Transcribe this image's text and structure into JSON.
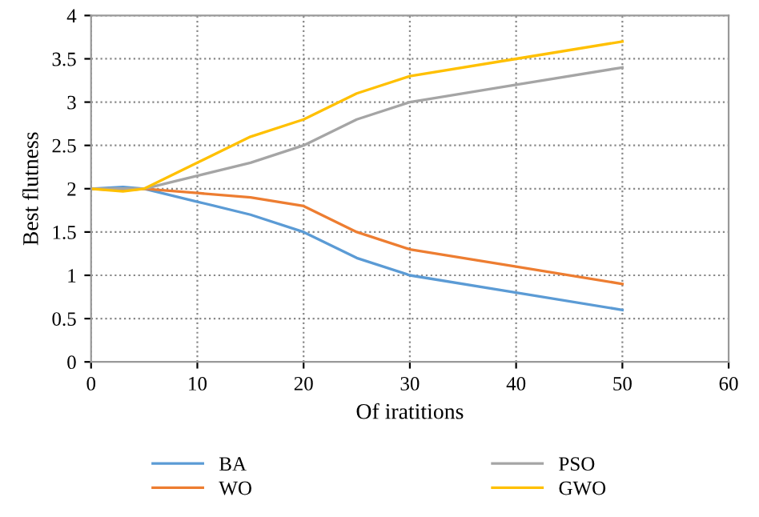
{
  "chart_data": {
    "type": "line",
    "xlabel": "Of iratitions",
    "ylabel": "Best flutness",
    "xlim": [
      0,
      60
    ],
    "xticks": [
      0,
      10,
      20,
      30,
      40,
      50,
      60
    ],
    "ylim": [
      0,
      4
    ],
    "yticks": [
      0,
      0.5,
      1,
      1.5,
      2,
      2.5,
      3,
      3.5,
      4
    ],
    "grid": true,
    "legend": "bottom",
    "marker": "none",
    "line_style": "solid",
    "series": [
      {
        "name": "BA",
        "color": "#5b9bd5",
        "x": [
          0,
          3,
          5,
          10,
          15,
          20,
          25,
          30,
          40,
          50
        ],
        "values": [
          2,
          2.02,
          2,
          1.85,
          1.7,
          1.5,
          1.2,
          1,
          0.8,
          0.6
        ]
      },
      {
        "name": "WO",
        "color": "#ed7d31",
        "x": [
          0,
          3,
          5,
          10,
          15,
          20,
          25,
          30,
          40,
          50
        ],
        "values": [
          2,
          1.98,
          2,
          1.95,
          1.9,
          1.8,
          1.5,
          1.3,
          1.1,
          0.9
        ]
      },
      {
        "name": "PSO",
        "color": "#a5a5a5",
        "x": [
          0,
          5,
          10,
          15,
          20,
          25,
          30,
          40,
          50
        ],
        "values": [
          2,
          2,
          2.15,
          2.3,
          2.5,
          2.8,
          3,
          3.2,
          3.4
        ]
      },
      {
        "name": "GWO",
        "color": "#ffc000",
        "x": [
          0,
          3,
          5,
          10,
          15,
          20,
          25,
          30,
          40,
          50
        ],
        "values": [
          2,
          1.97,
          2,
          2.3,
          2.6,
          2.8,
          3.1,
          3.3,
          3.5,
          3.7
        ]
      }
    ]
  }
}
